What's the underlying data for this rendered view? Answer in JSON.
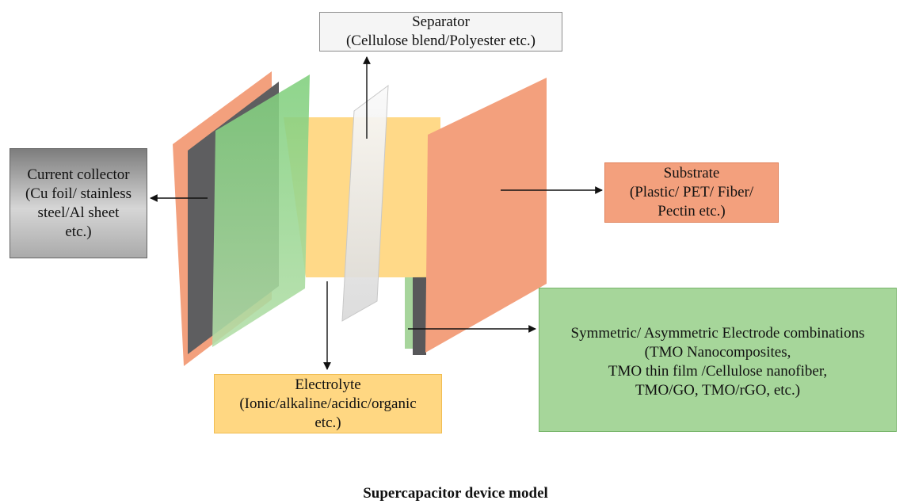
{
  "colors": {
    "substrate": "#f3a07d",
    "current_collector": "#5e5e60",
    "electrode": "#9fd394",
    "electrolyte": "#ffd782",
    "separator": "#e8e8e8",
    "arrow": "#111111"
  },
  "labels": {
    "separator": {
      "line1": "Separator",
      "line2": "(Cellulose blend/Polyester etc.)"
    },
    "current_collector": {
      "line1": "Current collector",
      "line2": "(Cu foil/ stainless",
      "line3": "steel/Al sheet",
      "line4": "etc.)"
    },
    "substrate": {
      "line1": "Substrate",
      "line2": "(Plastic/ PET/ Fiber/",
      "line3": "Pectin etc.)"
    },
    "electrode": {
      "line1": "Symmetric/ Asymmetric Electrode combinations",
      "line2": "(TMO Nanocomposites,",
      "line3": "TMO thin film /Cellulose nanofiber,",
      "line4": "TMO/GO, TMO/rGO, etc.)"
    },
    "electrolyte": {
      "line1": "Electrolyte",
      "line2": "(Ionic/alkaline/acidic/organic",
      "line3": "etc.)"
    }
  },
  "caption": "Supercapacitor device model"
}
